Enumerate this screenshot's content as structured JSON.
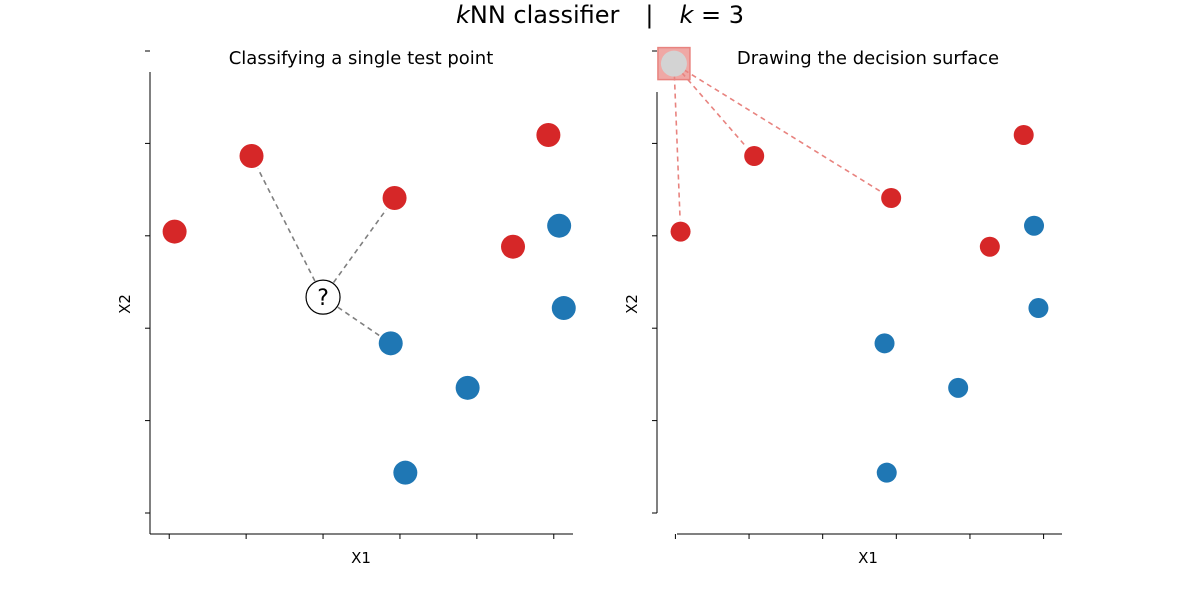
{
  "figure": {
    "title_k": "k",
    "title_rest": "NN classifier",
    "title_sep": "|",
    "title_k2": "k",
    "title_eq": " = 3"
  },
  "colors": {
    "red": "#d62728",
    "blue": "#1f77b4",
    "line_gray": "#7f7f7f",
    "line_salmon": "#e8837f",
    "query_gray": "#d3d3d3",
    "query_box": "#e8837f"
  },
  "chart_data": [
    {
      "type": "scatter",
      "title": "Classifying a single test point",
      "xlabel": "X1",
      "ylabel": "X2",
      "xlim": [
        -0.25,
        5.25
      ],
      "ylim": [
        -1.0,
        4.5
      ],
      "x_ticks": [
        0,
        1,
        2,
        3,
        4,
        5
      ],
      "y_ticks": [
        -0.75,
        0.35,
        1.45,
        2.55,
        3.65,
        4.75
      ],
      "tick_labels_visible": false,
      "grid": false,
      "series": [
        {
          "class": "red",
          "points": [
            [
              0.07,
              2.6
            ],
            [
              1.07,
              3.5
            ],
            [
              2.93,
              3.0
            ],
            [
              4.47,
              2.42
            ],
            [
              4.93,
              3.75
            ]
          ]
        },
        {
          "class": "blue",
          "points": [
            [
              3.07,
              -0.27
            ],
            [
              2.88,
              1.27
            ],
            [
              3.88,
              0.74
            ],
            [
              5.07,
              2.67
            ],
            [
              5.13,
              1.69
            ]
          ]
        }
      ],
      "test_point": {
        "x": 2.0,
        "y": 1.82,
        "label": "?"
      },
      "neighbors": [
        [
          1.07,
          3.5
        ],
        [
          2.93,
          3.0
        ],
        [
          2.88,
          1.27
        ]
      ]
    },
    {
      "type": "scatter",
      "title": "Drawing the decision surface",
      "xlabel": "X1",
      "ylabel": "X2",
      "xlim": [
        -0.25,
        5.25
      ],
      "ylim": [
        -1.0,
        4.5
      ],
      "x_ticks": [
        0,
        1,
        2,
        3,
        4,
        5
      ],
      "y_ticks": [
        -0.75,
        0.35,
        1.45,
        2.55,
        3.65,
        4.75
      ],
      "tick_labels_visible": false,
      "grid": false,
      "series": [
        {
          "class": "red",
          "points": [
            [
              0.07,
              2.6
            ],
            [
              1.07,
              3.5
            ],
            [
              2.93,
              3.0
            ],
            [
              4.27,
              2.42
            ],
            [
              4.73,
              3.75
            ]
          ]
        },
        {
          "class": "blue",
          "points": [
            [
              2.87,
              -0.27
            ],
            [
              2.84,
              1.27
            ],
            [
              3.84,
              0.74
            ],
            [
              4.87,
              2.67
            ],
            [
              4.93,
              1.69
            ]
          ]
        }
      ],
      "grid_query": {
        "x": -0.02,
        "y": 4.6
      },
      "neighbors": [
        [
          0.07,
          2.6
        ],
        [
          1.07,
          3.5
        ],
        [
          2.93,
          3.0
        ]
      ]
    }
  ]
}
